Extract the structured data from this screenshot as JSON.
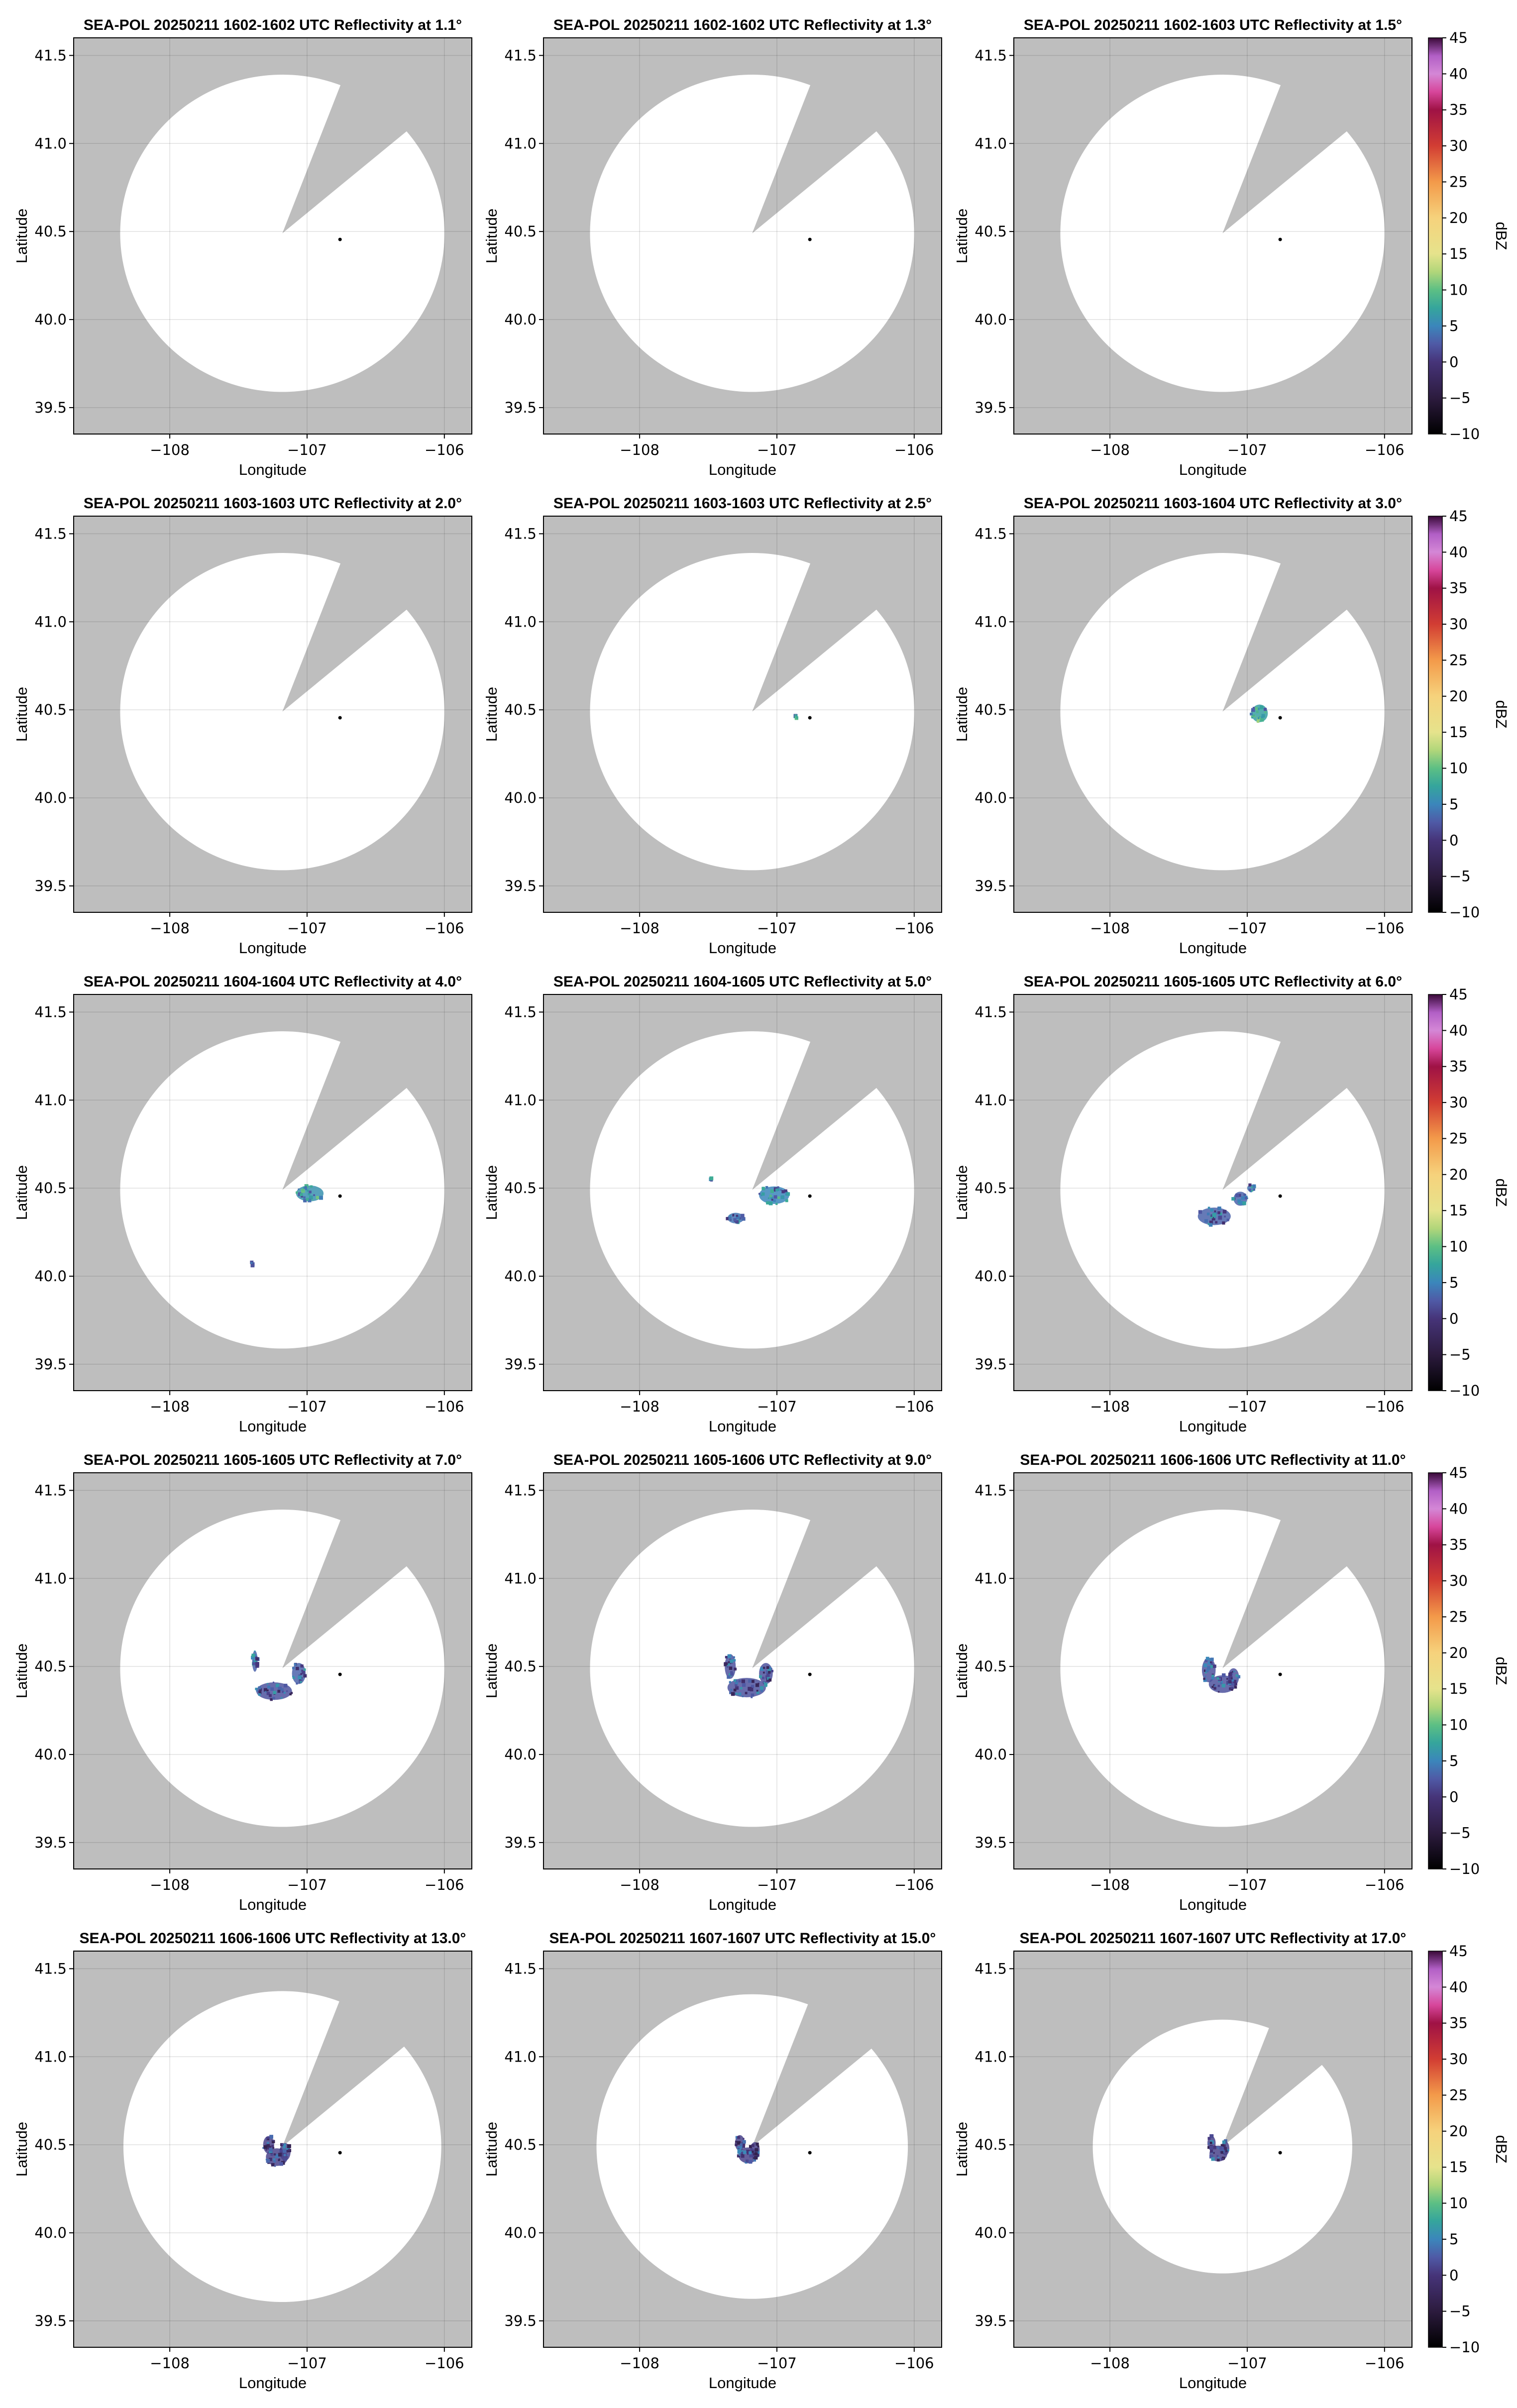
{
  "figure": {
    "background": "#ffffff",
    "no_data_color": "#bebebe",
    "coverage_color": "#ffffff",
    "radar_marker_color": "#000000"
  },
  "chart_data": {
    "type": "heatmap",
    "layout": "5x3 grid of plan-position-indicator reflectivity maps",
    "xlabel": "Longitude",
    "ylabel": "Latitude",
    "xlim": [
      -108.7,
      -105.8
    ],
    "ylim": [
      39.35,
      41.6
    ],
    "xticks": [
      -108,
      -107,
      -106
    ],
    "xtick_labels": [
      "−108",
      "−107",
      "−106"
    ],
    "yticks": [
      39.5,
      40.0,
      40.5,
      41.0,
      41.5
    ],
    "ytick_labels": [
      "39.5",
      "40.0",
      "40.5",
      "41.0",
      "41.5"
    ],
    "grid": true,
    "radar_site": {
      "lon": -107.18,
      "lat": 40.49
    },
    "marker_point": {
      "lon": -106.76,
      "lat": 40.455
    },
    "colorbar": {
      "label": "dBZ",
      "range": [
        -10,
        45
      ],
      "ticks": [
        -10,
        -5,
        0,
        5,
        10,
        15,
        20,
        25,
        30,
        35,
        40,
        45
      ],
      "tick_labels": [
        "−10",
        "−5",
        "0",
        "5",
        "10",
        "15",
        "20",
        "25",
        "30",
        "35",
        "40",
        "45"
      ],
      "colormap_stops": [
        {
          "value": -10,
          "color": "#000000"
        },
        {
          "value": -5,
          "color": "#2c1b3e"
        },
        {
          "value": 0,
          "color": "#463479"
        },
        {
          "value": 2.5,
          "color": "#4f5aa6"
        },
        {
          "value": 5,
          "color": "#3b86bb"
        },
        {
          "value": 7.5,
          "color": "#35a59c"
        },
        {
          "value": 10,
          "color": "#5cbf84"
        },
        {
          "value": 12.5,
          "color": "#b1d67a"
        },
        {
          "value": 15,
          "color": "#e6e38c"
        },
        {
          "value": 20,
          "color": "#f6d27c"
        },
        {
          "value": 25,
          "color": "#f39a4a"
        },
        {
          "value": 30,
          "color": "#d23d33"
        },
        {
          "value": 35,
          "color": "#9f1245"
        },
        {
          "value": 37.5,
          "color": "#d7469b"
        },
        {
          "value": 40,
          "color": "#d487d6"
        },
        {
          "value": 42.5,
          "color": "#b25fc6"
        },
        {
          "value": 45,
          "color": "#3a0a39"
        }
      ]
    },
    "panels": [
      {
        "title": "SEA-POL 20250211 1602-1602 UTC Reflectivity at 1.1°",
        "elevation_deg": 1.1,
        "max_range_km": 100,
        "blocked_azimuth_deg": [
          21,
          50
        ],
        "echoes": []
      },
      {
        "title": "SEA-POL 20250211 1602-1602 UTC Reflectivity at 1.3°",
        "elevation_deg": 1.3,
        "max_range_km": 100,
        "blocked_azimuth_deg": [
          21,
          50
        ],
        "echoes": []
      },
      {
        "title": "SEA-POL 20250211 1602-1603 UTC Reflectivity at 1.5°",
        "elevation_deg": 1.5,
        "max_range_km": 100,
        "blocked_azimuth_deg": [
          21,
          50
        ],
        "echoes": []
      },
      {
        "title": "SEA-POL 20250211 1603-1603 UTC Reflectivity at 2.0°",
        "elevation_deg": 2.0,
        "max_range_km": 100,
        "blocked_azimuth_deg": [
          21,
          50
        ],
        "echoes": []
      },
      {
        "title": "SEA-POL 20250211 1603-1603 UTC Reflectivity at 2.5°",
        "elevation_deg": 2.5,
        "max_range_km": 100,
        "blocked_azimuth_deg": [
          21,
          50
        ],
        "echoes": [
          {
            "lon": -106.86,
            "lat": 40.46,
            "rx": 0.012,
            "ry": 0.008,
            "dbz": 6
          }
        ]
      },
      {
        "title": "SEA-POL 20250211 1603-1604 UTC Reflectivity at 3.0°",
        "elevation_deg": 3.0,
        "max_range_km": 100,
        "blocked_azimuth_deg": [
          21,
          50
        ],
        "echoes": [
          {
            "lon": -106.91,
            "lat": 40.48,
            "rx": 0.06,
            "ry": 0.05,
            "dbz": 7
          }
        ]
      },
      {
        "title": "SEA-POL 20250211 1604-1604 UTC Reflectivity at 4.0°",
        "elevation_deg": 4.0,
        "max_range_km": 100,
        "blocked_azimuth_deg": [
          21,
          50
        ],
        "echoes": [
          {
            "lon": -106.98,
            "lat": 40.47,
            "rx": 0.1,
            "ry": 0.045,
            "dbz": 6
          },
          {
            "lon": -107.4,
            "lat": 40.07,
            "rx": 0.006,
            "ry": 0.01,
            "dbz": 4
          }
        ]
      },
      {
        "title": "SEA-POL 20250211 1604-1605 UTC Reflectivity at 5.0°",
        "elevation_deg": 5.0,
        "max_range_km": 100,
        "blocked_azimuth_deg": [
          21,
          50
        ],
        "echoes": [
          {
            "lon": -107.02,
            "lat": 40.46,
            "rx": 0.11,
            "ry": 0.05,
            "dbz": 5
          },
          {
            "lon": -107.3,
            "lat": 40.33,
            "rx": 0.06,
            "ry": 0.03,
            "dbz": 4
          },
          {
            "lon": -107.48,
            "lat": 40.55,
            "rx": 0.008,
            "ry": 0.008,
            "dbz": 4
          }
        ]
      },
      {
        "title": "SEA-POL 20250211 1605-1605 UTC Reflectivity at 6.0°",
        "elevation_deg": 6.0,
        "max_range_km": 100,
        "blocked_azimuth_deg": [
          21,
          50
        ],
        "echoes": [
          {
            "lon": -107.24,
            "lat": 40.34,
            "rx": 0.12,
            "ry": 0.05,
            "dbz": 3
          },
          {
            "lon": -107.05,
            "lat": 40.44,
            "rx": 0.05,
            "ry": 0.04,
            "dbz": 3
          },
          {
            "lon": -106.97,
            "lat": 40.5,
            "rx": 0.03,
            "ry": 0.02,
            "dbz": 4
          }
        ]
      },
      {
        "title": "SEA-POL 20250211 1605-1605 UTC Reflectivity at 7.0°",
        "elevation_deg": 7.0,
        "max_range_km": 100,
        "blocked_azimuth_deg": [
          21,
          50
        ],
        "echoes": [
          {
            "lon": -107.24,
            "lat": 40.36,
            "rx": 0.13,
            "ry": 0.05,
            "dbz": 2
          },
          {
            "lon": -107.06,
            "lat": 40.46,
            "rx": 0.05,
            "ry": 0.06,
            "dbz": 3
          },
          {
            "lon": -107.38,
            "lat": 40.53,
            "rx": 0.02,
            "ry": 0.06,
            "dbz": 3
          }
        ]
      },
      {
        "title": "SEA-POL 20250211 1605-1606 UTC Reflectivity at 9.0°",
        "elevation_deg": 9.0,
        "max_range_km": 100,
        "blocked_azimuth_deg": [
          21,
          50
        ],
        "echoes": [
          {
            "lon": -107.22,
            "lat": 40.38,
            "rx": 0.14,
            "ry": 0.055,
            "dbz": 2
          },
          {
            "lon": -107.08,
            "lat": 40.46,
            "rx": 0.05,
            "ry": 0.06,
            "dbz": 2
          },
          {
            "lon": -107.34,
            "lat": 40.5,
            "rx": 0.04,
            "ry": 0.07,
            "dbz": 2
          }
        ]
      },
      {
        "title": "SEA-POL 20250211 1606-1606 UTC Reflectivity at 11.0°",
        "elevation_deg": 11.0,
        "max_range_km": 100,
        "blocked_azimuth_deg": [
          21,
          50
        ],
        "echoes": [
          {
            "lon": -107.18,
            "lat": 40.4,
            "rx": 0.1,
            "ry": 0.05,
            "dbz": 2
          },
          {
            "lon": -107.28,
            "lat": 40.48,
            "rx": 0.05,
            "ry": 0.07,
            "dbz": 2
          },
          {
            "lon": -107.1,
            "lat": 40.44,
            "rx": 0.04,
            "ry": 0.05,
            "dbz": 2
          }
        ]
      },
      {
        "title": "SEA-POL 20250211 1606-1606 UTC Reflectivity at 13.0°",
        "elevation_deg": 13.0,
        "max_range_km": 98,
        "blocked_azimuth_deg": [
          21,
          50
        ],
        "echoes": [
          {
            "lon": -107.22,
            "lat": 40.43,
            "rx": 0.08,
            "ry": 0.05,
            "dbz": 1
          },
          {
            "lon": -107.28,
            "lat": 40.5,
            "rx": 0.04,
            "ry": 0.05,
            "dbz": 1
          },
          {
            "lon": -107.16,
            "lat": 40.46,
            "rx": 0.04,
            "ry": 0.05,
            "dbz": 1
          }
        ]
      },
      {
        "title": "SEA-POL 20250211 1607-1607 UTC Reflectivity at 15.0°",
        "elevation_deg": 15.0,
        "max_range_km": 96,
        "blocked_azimuth_deg": [
          21,
          50
        ],
        "echoes": [
          {
            "lon": -107.21,
            "lat": 40.44,
            "rx": 0.07,
            "ry": 0.045,
            "dbz": 1
          },
          {
            "lon": -107.27,
            "lat": 40.51,
            "rx": 0.035,
            "ry": 0.045,
            "dbz": 1
          },
          {
            "lon": -107.16,
            "lat": 40.47,
            "rx": 0.035,
            "ry": 0.045,
            "dbz": 1
          }
        ]
      },
      {
        "title": "SEA-POL 20250211 1607-1607 UTC Reflectivity at 17.0°",
        "elevation_deg": 17.0,
        "max_range_km": 80,
        "blocked_azimuth_deg": [
          21,
          50
        ],
        "echoes": [
          {
            "lon": -107.21,
            "lat": 40.45,
            "rx": 0.065,
            "ry": 0.045,
            "dbz": 1
          },
          {
            "lon": -107.26,
            "lat": 40.51,
            "rx": 0.03,
            "ry": 0.04,
            "dbz": 1
          },
          {
            "lon": -107.16,
            "lat": 40.48,
            "rx": 0.03,
            "ry": 0.04,
            "dbz": 1
          }
        ]
      }
    ]
  }
}
